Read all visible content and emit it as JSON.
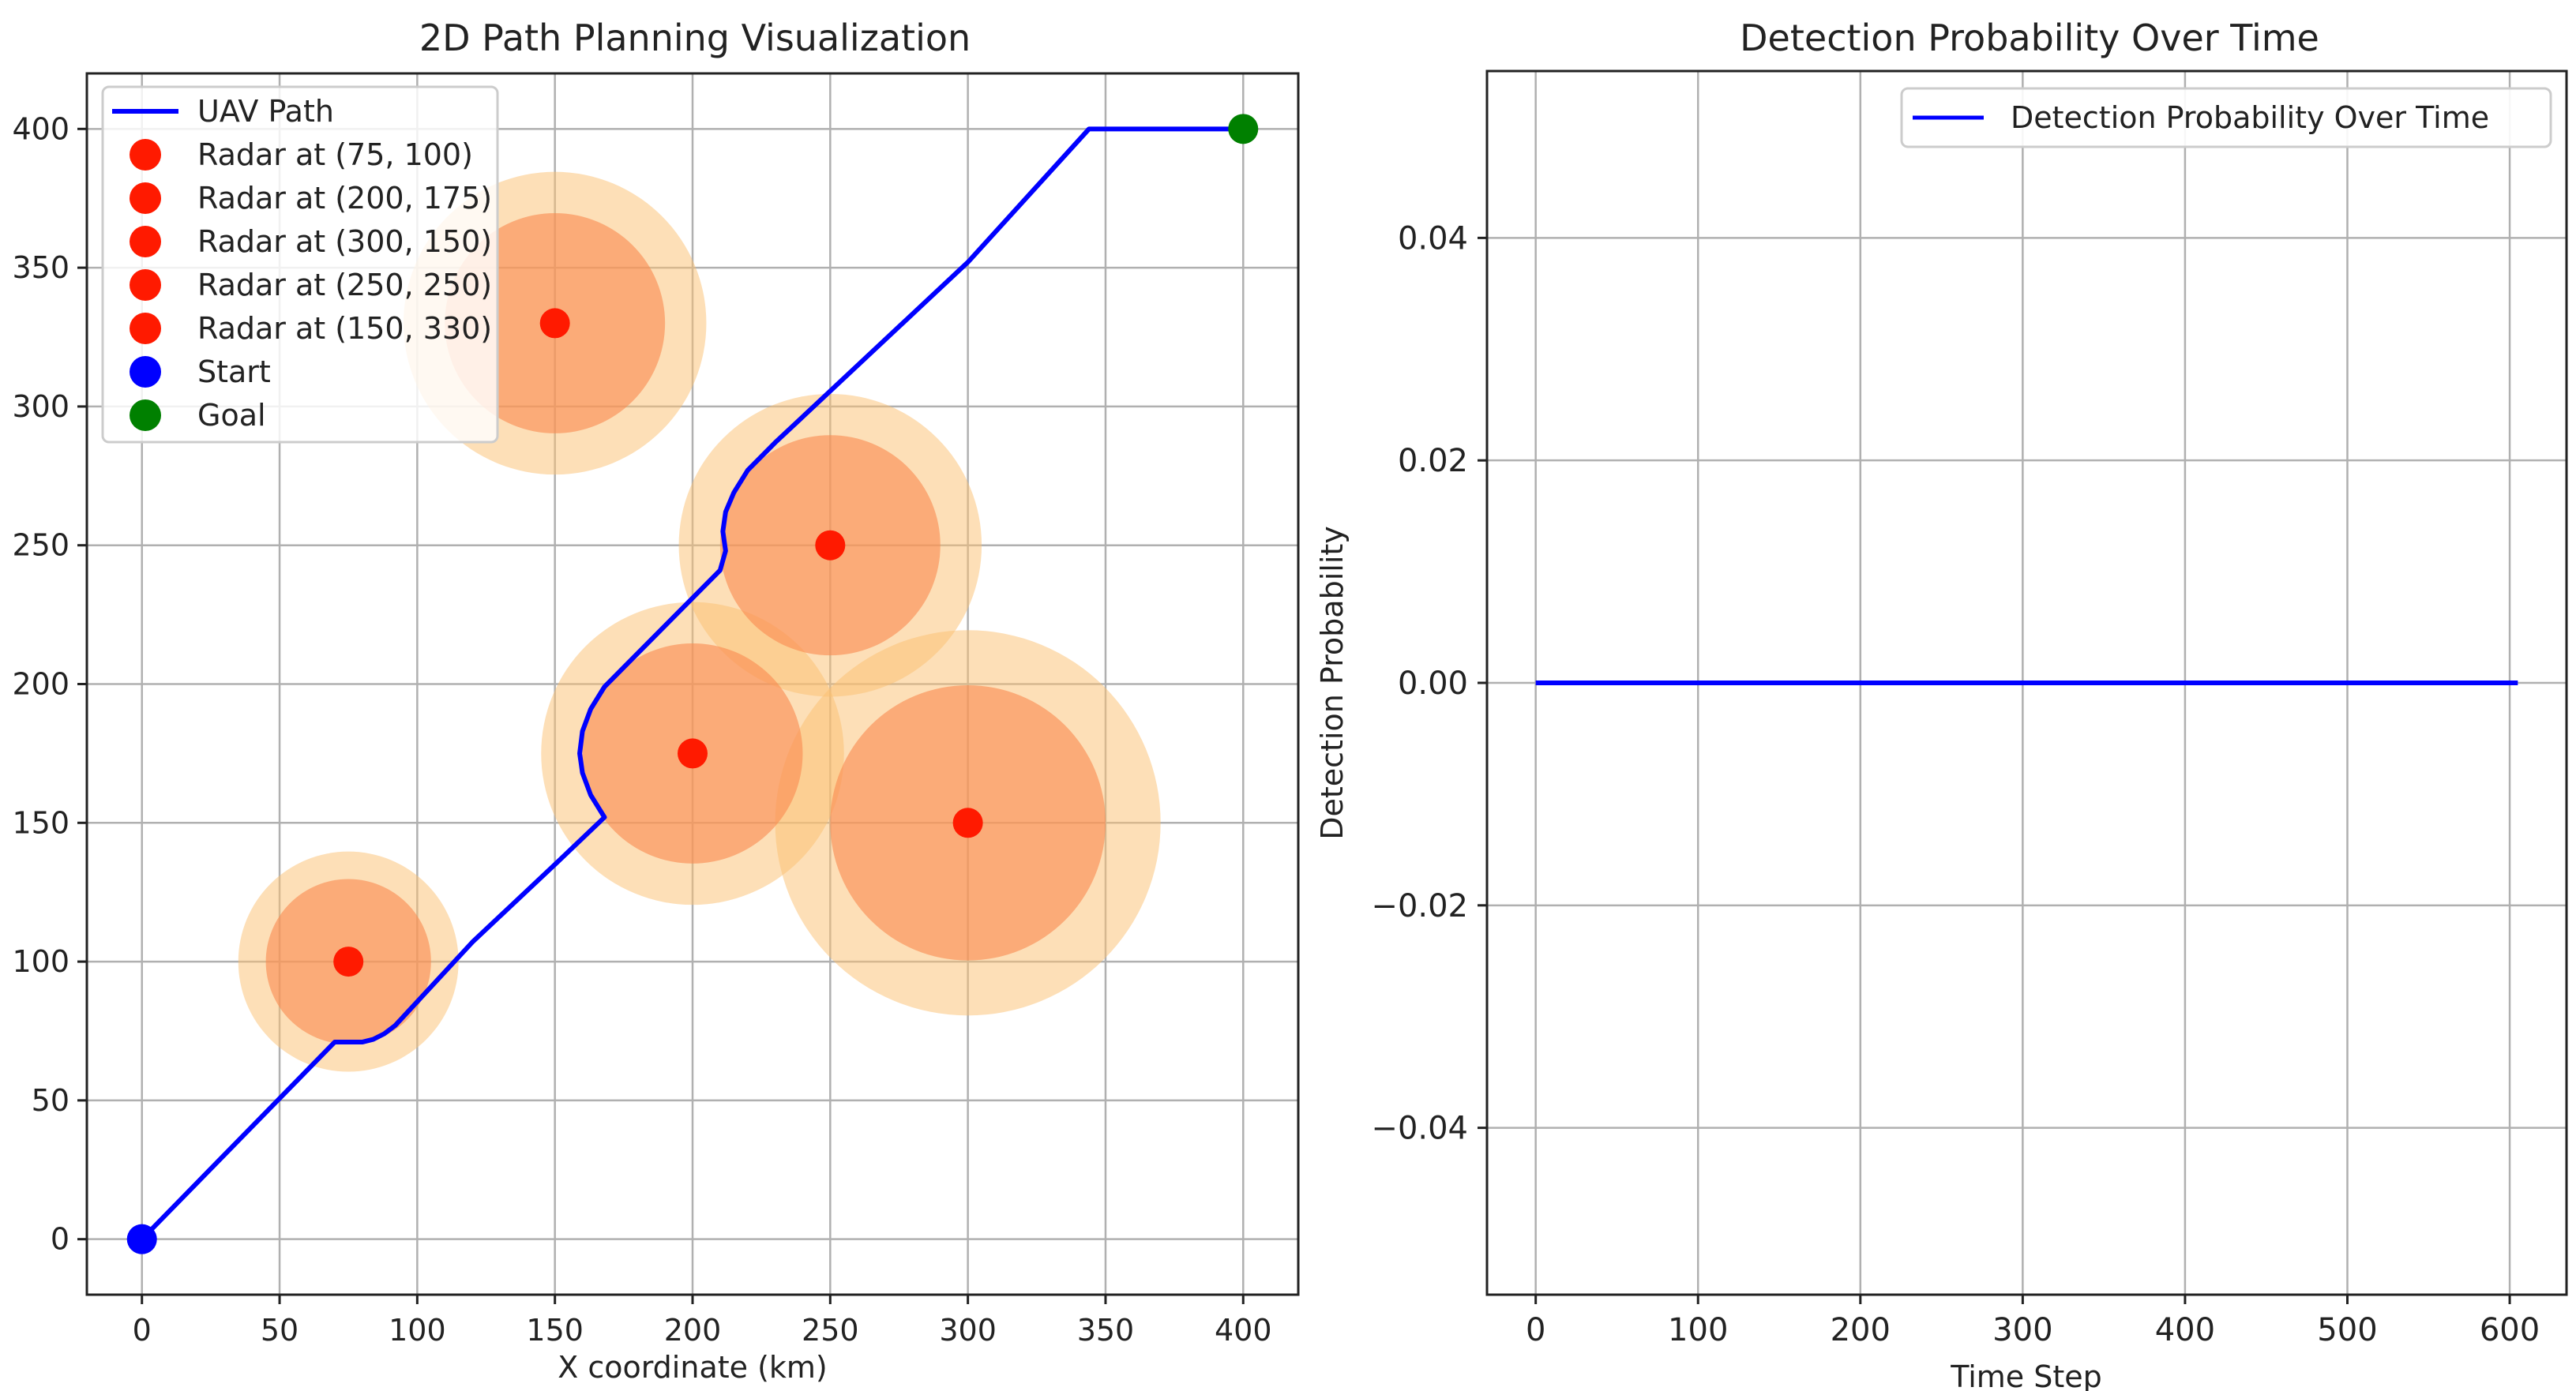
{
  "chart_data": [
    {
      "type": "line",
      "title": "2D Path Planning Visualization",
      "xlabel": "X coordinate (km)",
      "ylabel": "",
      "xlim": [
        -20,
        420
      ],
      "ylim": [
        -20,
        420
      ],
      "xticks": [
        0,
        50,
        100,
        150,
        200,
        250,
        300,
        350,
        400
      ],
      "yticks": [
        0,
        50,
        100,
        150,
        200,
        250,
        300,
        350,
        400
      ],
      "grid": true,
      "legend_position": "top-left",
      "legend": [
        "UAV Path",
        "Radar at (75, 100)",
        "Radar at (200, 175)",
        "Radar at (300, 150)",
        "Radar at (250, 250)",
        "Radar at (150, 330)",
        "Start",
        "Goal"
      ],
      "radars": [
        {
          "name": "Radar at (75, 100)",
          "x": 75,
          "y": 100,
          "inner_radius": 30,
          "outer_radius": 40
        },
        {
          "name": "Radar at (200, 175)",
          "x": 200,
          "y": 175,
          "inner_radius": 40,
          "outer_radius": 55
        },
        {
          "name": "Radar at (300, 150)",
          "x": 300,
          "y": 150,
          "inner_radius": 50,
          "outer_radius": 70
        },
        {
          "name": "Radar at (250, 250)",
          "x": 250,
          "y": 250,
          "inner_radius": 40,
          "outer_radius": 55
        },
        {
          "name": "Radar at (150, 330)",
          "x": 150,
          "y": 330,
          "inner_radius": 40,
          "outer_radius": 55
        }
      ],
      "path": {
        "name": "UAV Path",
        "color": "#0000ff",
        "x": [
          0,
          70,
          80,
          84,
          88,
          92,
          120,
          150,
          168,
          163,
          160,
          159,
          160,
          163,
          168,
          175,
          190,
          210,
          212,
          211,
          212,
          215,
          220,
          230,
          300,
          344,
          400
        ],
        "y": [
          0,
          71,
          71,
          72,
          74,
          77,
          107,
          135,
          152,
          160,
          168,
          175,
          183,
          191,
          199,
          206,
          221,
          241,
          248,
          255,
          262,
          269,
          277,
          287,
          352,
          400,
          400
        ]
      },
      "start": {
        "name": "Start",
        "x": 0,
        "y": 0,
        "color": "#0000ff"
      },
      "goal": {
        "name": "Goal",
        "x": 400,
        "y": 400,
        "color": "#008000"
      },
      "colors": {
        "radar_dot": "#ff1a00",
        "inner_zone": "#fa8a50",
        "outer_zone": "#fbc070"
      }
    },
    {
      "type": "line",
      "title": "Detection Probability Over Time",
      "xlabel": "Time Step",
      "ylabel": "Detection Probability",
      "xlim": [
        -30,
        635
      ],
      "ylim": [
        -0.055,
        0.055
      ],
      "xticks": [
        0,
        100,
        200,
        300,
        400,
        500,
        600
      ],
      "yticks": [
        -0.04,
        -0.02,
        0.0,
        0.02,
        0.04
      ],
      "ytick_labels": [
        "−0.04",
        "−0.02",
        "0.00",
        "0.02",
        "0.04"
      ],
      "grid": true,
      "legend_position": "top-right",
      "series": [
        {
          "name": "Detection Probability Over Time",
          "color": "#0000ff",
          "x": [
            0,
            605
          ],
          "y": [
            0,
            0
          ]
        }
      ]
    }
  ]
}
